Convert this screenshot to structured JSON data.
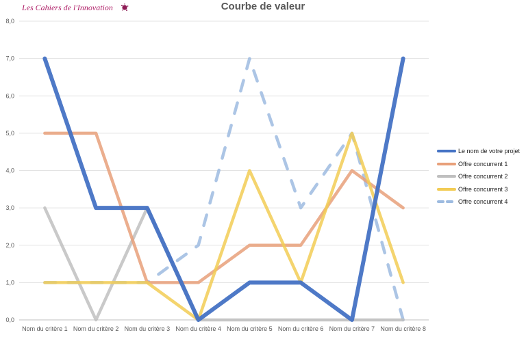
{
  "brand": {
    "text": "Les Cahiers de l'Innovation",
    "color": "#b0226a"
  },
  "chart_data": {
    "type": "line",
    "title": "Courbe de valeur",
    "xlabel": "",
    "ylabel": "",
    "ylim": [
      0,
      8
    ],
    "yticks": [
      "0,0",
      "1,0",
      "2,0",
      "3,0",
      "4,0",
      "5,0",
      "6,0",
      "7,0",
      "8,0"
    ],
    "categories": [
      "Nom du critère 1",
      "Nom du critère 2",
      "Nom du critère 3",
      "Nom du critère 4",
      "Nom du critère 5",
      "Nom du critère 6",
      "Nom du critère 7",
      "Nom du critère 8"
    ],
    "grid": true,
    "legend": "right",
    "series": [
      {
        "name": "Le nom de votre projet",
        "values": [
          7,
          3,
          3,
          0,
          1,
          1,
          0,
          7
        ],
        "color": "#4472c4",
        "dash": false
      },
      {
        "name": "Offre concurrent 1",
        "values": [
          5,
          5,
          1,
          1,
          2,
          2,
          4,
          3
        ],
        "color": "#e8a07a",
        "dash": false
      },
      {
        "name": "Offre concurrent 2",
        "values": [
          3,
          0,
          3,
          0,
          0,
          0,
          0,
          0
        ],
        "color": "#bfbfbf",
        "dash": false
      },
      {
        "name": "Offre concurrent 3",
        "values": [
          1,
          1,
          1,
          0,
          4,
          1,
          5,
          1
        ],
        "color": "#f2cc55",
        "dash": false
      },
      {
        "name": "Offre concurrent 4",
        "values": [
          1,
          1,
          1,
          2,
          7,
          3,
          5,
          0
        ],
        "color": "#9dbbe0",
        "dash": true
      }
    ]
  }
}
